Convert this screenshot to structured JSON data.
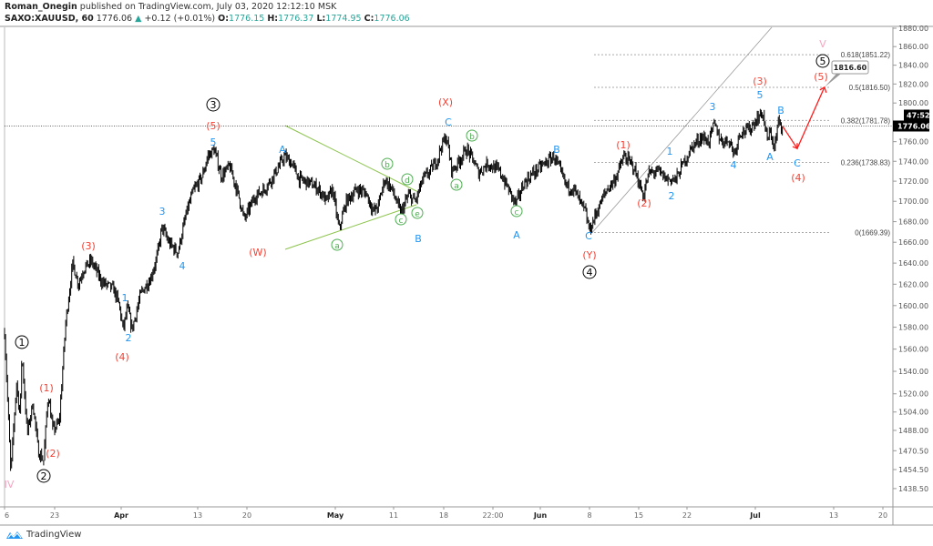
{
  "header": {
    "author": "Roman_Onegin",
    "published": " published on TradingView.com, July 03, 2020 12:12:10 MSK",
    "symbol": "SAXO:XAUUSD, 60",
    "last": "1776.06",
    "change": "+0.12 (+0.01%)",
    "o_label": "O:",
    "o": "1776.15",
    "h_label": "H:",
    "h": "1776.37",
    "l_label": "L:",
    "l": "1774.95",
    "c_label": "C:",
    "c": "1776.06"
  },
  "logo": {
    "text": "TradingView"
  },
  "colors": {
    "red": "#f44336",
    "blue": "#2196f3",
    "green": "#4caf50",
    "pink": "#f3a6c0",
    "teal": "#26a69a",
    "candle": "#000000"
  },
  "chart_data": {
    "type": "candlestick",
    "yscale": "log",
    "ylim": [
      1430,
      1885
    ],
    "y_ticks": [
      "1880.00",
      "1860.00",
      "1840.00",
      "1820.00",
      "1800.00",
      "1760.00",
      "1740.00",
      "1720.00",
      "1700.00",
      "1680.00",
      "1660.00",
      "1640.00",
      "1620.00",
      "1600.00",
      "1580.00",
      "1560.00",
      "1540.00",
      "1520.00",
      "1504.00",
      "1488.00",
      "1470.50",
      "1454.50",
      "1438.50"
    ],
    "x_ticks": [
      {
        "date": "2020-03-16",
        "label": "6"
      },
      {
        "date": "2020-03-23",
        "label": "23"
      },
      {
        "date": "2020-04-01",
        "label": "Apr",
        "bold": true
      },
      {
        "date": "2020-04-13",
        "label": "13"
      },
      {
        "date": "2020-04-20",
        "label": "20"
      },
      {
        "date": "2020-05-01",
        "label": "May",
        "bold": true
      },
      {
        "date": "2020-05-11",
        "label": "11"
      },
      {
        "date": "2020-05-18",
        "label": "18"
      },
      {
        "date": "2020-05-25",
        "label": "22:00"
      },
      {
        "date": "2020-06-01",
        "label": "Jun",
        "bold": true
      },
      {
        "date": "2020-06-08",
        "label": "8"
      },
      {
        "date": "2020-06-15",
        "label": "15"
      },
      {
        "date": "2020-06-22",
        "label": "22"
      },
      {
        "date": "2020-07-01",
        "label": "Jul",
        "bold": true
      },
      {
        "date": "2020-07-13",
        "label": "13"
      },
      {
        "date": "2020-07-20",
        "label": "20"
      }
    ],
    "price_pivots": [
      [
        "2020-03-16 00",
        1575
      ],
      [
        "2020-03-16 21",
        1451
      ],
      [
        "2020-03-17 16",
        1530
      ],
      [
        "2020-03-18 04",
        1500
      ],
      [
        "2020-03-18 10",
        1556
      ],
      [
        "2020-03-19 04",
        1485
      ],
      [
        "2020-03-19 23",
        1512
      ],
      [
        "2020-03-20 17",
        1470
      ],
      [
        "2020-03-21 11",
        1462
      ],
      [
        "2020-03-22 02",
        1520
      ],
      [
        "2020-03-22 18",
        1488
      ],
      [
        "2020-03-23 15",
        1495
      ],
      [
        "2020-03-24 12",
        1585
      ],
      [
        "2020-03-25 11",
        1640
      ],
      [
        "2020-03-26 05",
        1620
      ],
      [
        "2020-03-26 23",
        1635
      ],
      [
        "2020-03-27 23",
        1642
      ],
      [
        "2020-03-29 10",
        1622
      ],
      [
        "2020-03-31 00",
        1615
      ],
      [
        "2020-03-31 18",
        1600
      ],
      [
        "2020-04-01 07",
        1578
      ],
      [
        "2020-04-02 00",
        1598
      ],
      [
        "2020-04-02 17",
        1578
      ],
      [
        "2020-04-04 03",
        1612
      ],
      [
        "2020-04-05 14",
        1625
      ],
      [
        "2020-04-06 14",
        1645
      ],
      [
        "2020-04-07 10",
        1675
      ],
      [
        "2020-04-08 10",
        1660
      ],
      [
        "2020-04-09 21",
        1650
      ],
      [
        "2020-04-11 07",
        1690
      ],
      [
        "2020-04-12 07",
        1710
      ],
      [
        "2020-04-13 16",
        1725
      ],
      [
        "2020-04-14 10",
        1745
      ],
      [
        "2020-04-15 08",
        1752
      ],
      [
        "2020-04-16 09",
        1725
      ],
      [
        "2020-04-17 13",
        1735
      ],
      [
        "2020-04-18 20",
        1705
      ],
      [
        "2020-04-19 15",
        1682
      ],
      [
        "2020-04-21 00",
        1705
      ],
      [
        "2020-04-22 04",
        1712
      ],
      [
        "2020-04-23 07",
        1725
      ],
      [
        "2020-04-24 16",
        1745
      ],
      [
        "2020-04-25 14",
        1738
      ],
      [
        "2020-04-26 12",
        1722
      ],
      [
        "2020-04-27 20",
        1718
      ],
      [
        "2020-04-28 23",
        1712
      ],
      [
        "2020-04-29 21",
        1700
      ],
      [
        "2020-04-30 16",
        1712
      ],
      [
        "2020-05-01 15",
        1672
      ],
      [
        "2020-05-02 21",
        1700
      ],
      [
        "2020-05-04 18",
        1712
      ],
      [
        "2020-05-06 07",
        1708
      ],
      [
        "2020-05-07 13",
        1690
      ],
      [
        "2020-05-08 08",
        1695
      ],
      [
        "2020-05-09 11",
        1722
      ],
      [
        "2020-05-10 17",
        1712
      ],
      [
        "2020-05-12 00",
        1688
      ],
      [
        "2020-05-13 01",
        1706
      ],
      [
        "2020-05-14 01",
        1700
      ],
      [
        "2020-05-15 02",
        1722
      ],
      [
        "2020-05-16 02",
        1730
      ],
      [
        "2020-05-17 03",
        1742
      ],
      [
        "2020-05-17 15",
        1755
      ],
      [
        "2020-05-18 09",
        1765
      ],
      [
        "2020-05-19 04",
        1730
      ],
      [
        "2020-05-19 23",
        1738
      ],
      [
        "2020-05-21 06",
        1752
      ],
      [
        "2020-05-22 07",
        1740
      ],
      [
        "2020-05-22 22",
        1728
      ],
      [
        "2020-05-24 06",
        1738
      ],
      [
        "2020-05-25 23",
        1730
      ],
      [
        "2020-05-27 07",
        1712
      ],
      [
        "2020-05-28 09",
        1697
      ],
      [
        "2020-05-29 14",
        1718
      ],
      [
        "2020-05-30 22",
        1728
      ],
      [
        "2020-06-01 16",
        1738
      ],
      [
        "2020-06-02 23",
        1745
      ],
      [
        "2020-06-03 20",
        1730
      ],
      [
        "2020-06-04 18",
        1715
      ],
      [
        "2020-06-05 19",
        1712
      ],
      [
        "2020-06-06 14",
        1700
      ],
      [
        "2020-06-07 09",
        1690
      ],
      [
        "2020-06-08 00",
        1671
      ],
      [
        "2020-06-09 01",
        1690
      ],
      [
        "2020-06-10 08",
        1710
      ],
      [
        "2020-06-11 15",
        1722
      ],
      [
        "2020-06-12 22",
        1745
      ],
      [
        "2020-06-14 06",
        1735
      ],
      [
        "2020-06-15 16",
        1705
      ],
      [
        "2020-06-16 11",
        1728
      ],
      [
        "2020-06-17 18",
        1730
      ],
      [
        "2020-06-19 02",
        1722
      ],
      [
        "2020-06-20 10",
        1722
      ],
      [
        "2020-06-21 11",
        1738
      ],
      [
        "2020-06-22 17",
        1755
      ],
      [
        "2020-06-23 22",
        1765
      ],
      [
        "2020-06-24 21",
        1760
      ],
      [
        "2020-06-25 14",
        1778
      ],
      [
        "2020-06-26 13",
        1760
      ],
      [
        "2020-06-27 12",
        1762
      ],
      [
        "2020-06-28 06",
        1748
      ],
      [
        "2020-06-28 23",
        1770
      ],
      [
        "2020-06-30 04",
        1772
      ],
      [
        "2020-07-01 10",
        1785
      ],
      [
        "2020-07-02 03",
        1790
      ],
      [
        "2020-07-02 19",
        1762
      ],
      [
        "2020-07-03 09",
        1770
      ],
      [
        "2020-07-03 22",
        1752
      ],
      [
        "2020-07-04 12",
        1780
      ],
      [
        "2020-07-05 04",
        1776
      ]
    ],
    "current_price": {
      "value": 1776.06,
      "label": "1776.06",
      "countdown": "47:52"
    },
    "projection": [
      [
        "2020-07-05 04",
        1776
      ],
      [
        "2020-07-07 10",
        1753
      ],
      [
        "2020-07-11 14",
        1816.6
      ]
    ],
    "projection_label": "1816.60",
    "fib_levels": [
      {
        "value": 1851.22,
        "label": "0.618(1851.22)"
      },
      {
        "value": 1816.5,
        "label": "0.5(1816.50)"
      },
      {
        "value": 1781.78,
        "label": "0.382(1781.78)"
      },
      {
        "value": 1738.83,
        "label": "0.236(1738.83)"
      },
      {
        "value": 1669.39,
        "label": "0(1669.39)"
      }
    ],
    "wave_labels": [
      {
        "text": "1",
        "style": "circle-black"
      },
      {
        "text": "2",
        "style": "circle-black"
      },
      {
        "text": "3",
        "style": "circle-black"
      },
      {
        "text": "4",
        "style": "circle-black"
      },
      {
        "text": "5",
        "style": "circle-black"
      },
      {
        "text": "V",
        "style": "pink"
      },
      {
        "text": "IV",
        "style": "pink"
      },
      {
        "text": "(1)",
        "style": "red"
      },
      {
        "text": "(2)",
        "style": "red"
      },
      {
        "text": "(3)",
        "style": "red"
      },
      {
        "text": "(4)",
        "style": "red"
      },
      {
        "text": "(5)",
        "style": "red"
      },
      {
        "text": "(W)",
        "style": "red"
      },
      {
        "text": "(X)",
        "style": "red"
      },
      {
        "text": "(Y)",
        "style": "red"
      },
      {
        "text": "(1)",
        "style": "red"
      },
      {
        "text": "(2)",
        "style": "red"
      },
      {
        "text": "(3)",
        "style": "red"
      },
      {
        "text": "(4)",
        "style": "red"
      },
      {
        "text": "(5)",
        "style": "red"
      },
      {
        "text": "5",
        "style": "blue"
      },
      {
        "text": "3",
        "style": "blue"
      },
      {
        "text": "4",
        "style": "blue"
      },
      {
        "text": "1",
        "style": "blue"
      },
      {
        "text": "2",
        "style": "blue"
      },
      {
        "text": "A",
        "style": "blue"
      },
      {
        "text": "B",
        "style": "blue"
      },
      {
        "text": "C",
        "style": "blue"
      },
      {
        "text": "B",
        "style": "blue"
      },
      {
        "text": "A",
        "style": "blue"
      },
      {
        "text": "C",
        "style": "blue"
      },
      {
        "text": "1",
        "style": "blue"
      },
      {
        "text": "2",
        "style": "blue"
      },
      {
        "text": "3",
        "style": "blue"
      },
      {
        "text": "4",
        "style": "blue"
      },
      {
        "text": "5",
        "style": "blue"
      },
      {
        "text": "B",
        "style": "blue"
      },
      {
        "text": "A",
        "style": "blue"
      },
      {
        "text": "C",
        "style": "blue"
      },
      {
        "text": "a",
        "style": "circle-green"
      },
      {
        "text": "b",
        "style": "circle-green"
      },
      {
        "text": "d",
        "style": "circle-green"
      },
      {
        "text": "c",
        "style": "circle-green"
      },
      {
        "text": "e",
        "style": "circle-green"
      },
      {
        "text": "b",
        "style": "circle-green"
      },
      {
        "text": "a",
        "style": "circle-green"
      },
      {
        "text": "c",
        "style": "circle-green"
      }
    ]
  }
}
